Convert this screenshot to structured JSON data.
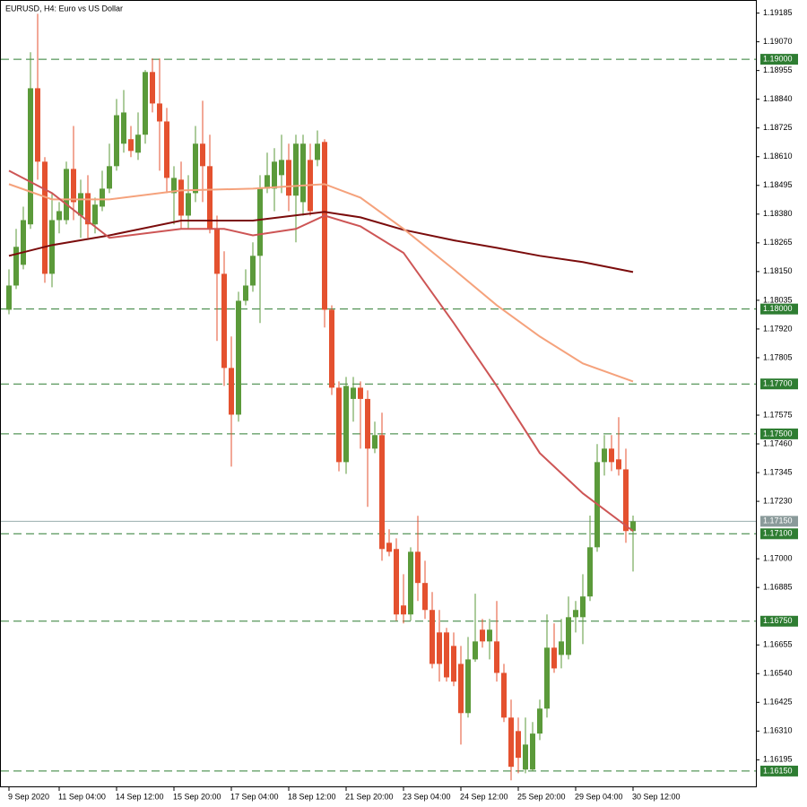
{
  "chart_data": {
    "type": "candlestick",
    "title": "EURUSD, H4:  Euro vs US Dollar",
    "categories": [
      "9 Sep 2020",
      null,
      null,
      null,
      null,
      null,
      null,
      "11 Sep 04:00",
      null,
      null,
      null,
      null,
      null,
      null,
      null,
      "14 Sep 12:00",
      null,
      null,
      null,
      null,
      null,
      null,
      null,
      "15 Sep 20:00",
      null,
      null,
      null,
      null,
      null,
      null,
      null,
      "17 Sep 04:00",
      null,
      null,
      null,
      null,
      null,
      null,
      null,
      "18 Sep 12:00",
      null,
      null,
      null,
      null,
      null,
      null,
      null,
      "21 Sep 20:00",
      null,
      null,
      null,
      null,
      null,
      null,
      null,
      "23 Sep 04:00",
      null,
      null,
      null,
      null,
      null,
      null,
      null,
      "24 Sep 12:00",
      null,
      null,
      null,
      null,
      null,
      null,
      null,
      "25 Sep 20:00",
      null,
      null,
      null,
      null,
      null,
      null,
      null,
      "29 Sep 04:00",
      null,
      null,
      null,
      null,
      null,
      null,
      null,
      "30 Sep 12:00"
    ],
    "open": [
      1.17997,
      1.18094,
      1.18177,
      1.18339,
      1.18884,
      1.1859,
      1.18141,
      1.18356,
      1.18356,
      1.18561,
      1.18374,
      1.18464,
      1.18339,
      1.1841,
      1.18482,
      1.18572,
      1.18662,
      1.1868,
      1.18626,
      1.18698,
      1.18949,
      1.18823,
      1.18751,
      1.18464,
      1.18518,
      1.18374,
      1.18464,
      1.18662,
      1.18572,
      1.18321,
      1.18141,
      1.17764,
      1.17577,
      1.18033,
      1.18094,
      1.18213,
      1.18482,
      1.18482,
      1.18536,
      1.18597,
      1.18454,
      1.18428,
      1.18597,
      1.18597,
      1.18669,
      1.17997,
      1.17685,
      1.17387,
      1.1764,
      1.17685,
      1.1764,
      1.17441,
      1.17495,
      1.17064,
      1.17039,
      1.16813,
      1.16777,
      1.17028,
      1.16903,
      1.16795,
      1.16705,
      1.16705,
      1.16651,
      1.16579,
      1.16382,
      1.16597,
      1.16716,
      1.16669,
      1.16669,
      1.16543,
      1.16364,
      1.1631,
      1.16156,
      1.16156,
      1.163,
      1.164,
      1.16644,
      1.16615,
      1.16615,
      1.16766,
      1.16766,
      1.16849,
      1.17046,
      1.17387,
      1.17441,
      1.17398,
      1.17358,
      1.17111
    ],
    "high": [
      1.18159,
      1.18321,
      1.1841,
      1.19028,
      1.19182,
      1.18608,
      1.18464,
      1.18428,
      1.1859,
      1.18733,
      1.18518,
      1.18536,
      1.18446,
      1.18554,
      1.18662,
      1.18841,
      1.18877,
      1.18733,
      1.18787,
      1.18957,
      1.19003,
      1.19003,
      1.18805,
      1.18572,
      1.1859,
      1.18536,
      1.18733,
      1.18834,
      1.18698,
      1.18374,
      1.18231,
      1.1789,
      1.18069,
      1.18159,
      1.18267,
      1.18536,
      1.18626,
      1.18644,
      1.18698,
      1.18662,
      1.18698,
      1.18698,
      1.18662,
      1.18715,
      1.1868,
      1.18015,
      1.1771,
      1.17728,
      1.17728,
      1.1771,
      1.17674,
      1.17549,
      1.17585,
      1.17118,
      1.17082,
      1.16938,
      1.17046,
      1.17172,
      1.16992,
      1.16867,
      1.16795,
      1.16723,
      1.16705,
      1.16651,
      1.16687,
      1.1686,
      1.16759,
      1.16759,
      1.16831,
      1.16579,
      1.16436,
      1.16364,
      1.16364,
      1.16346,
      1.16436,
      1.16777,
      1.16741,
      1.16759,
      1.16849,
      1.16831,
      1.16938,
      1.17173,
      1.17459,
      1.17495,
      1.17495,
      1.17567,
      1.17441,
      1.17173
    ],
    "low": [
      1.17979,
      1.1808,
      1.18159,
      1.18321,
      1.18518,
      1.18105,
      1.18087,
      1.18303,
      1.18339,
      1.18356,
      1.18285,
      1.18285,
      1.18303,
      1.18392,
      1.18464,
      1.18554,
      1.18626,
      1.18608,
      1.18597,
      1.18662,
      1.18787,
      1.18554,
      1.18464,
      1.18339,
      1.18321,
      1.18321,
      1.18428,
      1.18428,
      1.18303,
      1.17872,
      1.17692,
      1.17369,
      1.17549,
      1.18015,
      1.18069,
      1.17944,
      1.18464,
      1.18392,
      1.18464,
      1.18392,
      1.18267,
      1.18374,
      1.18374,
      1.18572,
      1.17926,
      1.17656,
      1.1735,
      1.1734,
      1.17549,
      1.17441,
      1.17208,
      1.17423,
      1.16992,
      1.1701,
      1.16752,
      1.16741,
      1.16752,
      1.16831,
      1.16759,
      1.16561,
      1.16508,
      1.16508,
      1.1649,
      1.16256,
      1.16364,
      1.16587,
      1.16644,
      1.16597,
      1.16508,
      1.16346,
      1.16113,
      1.16141,
      1.16141,
      1.16149,
      1.16274,
      1.16364,
      1.16543,
      1.16561,
      1.16597,
      1.16705,
      1.16658,
      1.16831,
      1.17028,
      1.17333,
      1.17351,
      1.17333,
      1.17064,
      1.16949
    ],
    "close": [
      1.18094,
      1.18249,
      1.18356,
      1.18884,
      1.1859,
      1.18141,
      1.18356,
      1.18392,
      1.18561,
      1.18428,
      1.18464,
      1.18339,
      1.18418,
      1.18482,
      1.18572,
      1.18776,
      1.18787,
      1.18633,
      1.18698,
      1.18949,
      1.18823,
      1.18751,
      1.18525,
      1.18525,
      1.18374,
      1.18464,
      1.18662,
      1.18572,
      1.18321,
      1.18141,
      1.17764,
      1.17577,
      1.18033,
      1.18094,
      1.18213,
      1.18482,
      1.18536,
      1.1859,
      1.18597,
      1.18454,
      1.18662,
      1.18662,
      1.18392,
      1.18662,
      1.17997,
      1.17685,
      1.17387,
      1.17692,
      1.17685,
      1.1764,
      1.17441,
      1.17495,
      1.17039,
      1.17028,
      1.16777,
      1.16777,
      1.17028,
      1.16903,
      1.16795,
      1.16579,
      1.16579,
      1.16525,
      1.16508,
      1.16382,
      1.16597,
      1.16669,
      1.16669,
      1.16716,
      1.16543,
      1.16364,
      1.16167,
      1.16203,
      1.16256,
      1.163,
      1.164,
      1.16644,
      1.16561,
      1.16669,
      1.16766,
      1.16795,
      1.16849,
      1.17046,
      1.17387,
      1.17441,
      1.17387,
      1.17358,
      1.17111,
      1.1715
    ],
    "up_color": "#5b9a3a",
    "down_color": "#e4512f",
    "ylim": [
      1.16085,
      1.19223
    ],
    "yticks": [
      1.19185,
      {
        "value": 1.1907,
        "label": "1.19070"
      },
      1.18955,
      {
        "value": 1.1884,
        "label": "1.18840"
      },
      1.18725,
      {
        "value": 1.1861,
        "label": "1.18610"
      },
      1.18495,
      {
        "value": 1.1838,
        "label": "1.18380"
      },
      1.18265,
      {
        "value": 1.1815,
        "label": "1.18150"
      },
      1.18035,
      {
        "value": 1.1792,
        "label": "1.17920"
      },
      1.17805,
      1.17575,
      {
        "value": 1.1746,
        "label": "1.17460"
      },
      1.17345,
      {
        "value": 1.1723,
        "label": "1.17230"
      },
      {
        "value": 1.17,
        "label": "1.17000"
      },
      1.16885,
      1.16655,
      {
        "value": 1.1654,
        "label": "1.16540"
      },
      1.16425,
      {
        "value": 1.1631,
        "label": "1.16310"
      },
      1.16195
    ],
    "lines": [
      {
        "color": "#7b0c0c",
        "x": [
          0,
          6,
          14,
          24,
          34,
          44,
          49,
          55,
          62,
          68,
          74,
          80,
          87
        ],
        "values": [
          1.18213,
          1.18256,
          1.18295,
          1.18354,
          1.18354,
          1.18389,
          1.18367,
          1.18317,
          1.18275,
          1.18245,
          1.18213,
          1.18188,
          1.18148
        ]
      },
      {
        "color": "#f5a27c",
        "x": [
          0,
          6,
          14,
          24,
          34,
          44,
          49,
          55,
          62,
          68,
          74,
          80,
          87
        ],
        "values": [
          1.185,
          1.18439,
          1.18439,
          1.18475,
          1.18482,
          1.185,
          1.18446,
          1.18321,
          1.18159,
          1.18015,
          1.1789,
          1.17782,
          1.1771
        ]
      },
      {
        "color": "#cd5555",
        "x": [
          0,
          6,
          14,
          24,
          30,
          34,
          40,
          44,
          49,
          55,
          62,
          68,
          74,
          80,
          87
        ],
        "values": [
          1.18554,
          1.18464,
          1.18285,
          1.18321,
          1.18321,
          1.18295,
          1.18321,
          1.18374,
          1.18331,
          1.18225,
          1.17944,
          1.17692,
          1.17423,
          1.17262,
          1.17111
        ]
      }
    ],
    "levels": [
      {
        "value": 1.19,
        "label": "1.19000"
      },
      {
        "value": 1.18,
        "label": "1.18000"
      },
      {
        "value": 1.177,
        "label": "1.17700"
      },
      {
        "value": 1.175,
        "label": "1.17500"
      },
      {
        "value": 1.171,
        "label": "1.17100"
      },
      {
        "value": 1.1675,
        "label": "1.16750"
      },
      {
        "value": 1.1615,
        "label": "1.16150"
      }
    ],
    "level_color": "#2e7d32",
    "current_price": {
      "value": 1.1715,
      "label": "1.17150"
    }
  }
}
